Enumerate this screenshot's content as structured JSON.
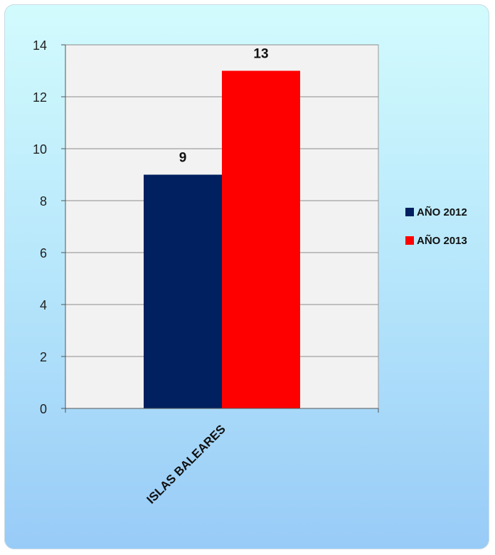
{
  "chart_data": {
    "type": "bar",
    "categories": [
      "ISLAS BALEARES"
    ],
    "series": [
      {
        "name": "AÑO 2012",
        "values": [
          9
        ],
        "color": "#002060"
      },
      {
        "name": "AÑO 2013",
        "values": [
          13
        ],
        "color": "#ff0000"
      }
    ],
    "ylim": [
      0,
      14
    ],
    "yticks": [
      0,
      2,
      4,
      6,
      8,
      10,
      12,
      14
    ],
    "data_labels": [
      "9",
      "13"
    ],
    "grid": true,
    "legend_position": "right",
    "plot_background": "#f2f2f2"
  }
}
